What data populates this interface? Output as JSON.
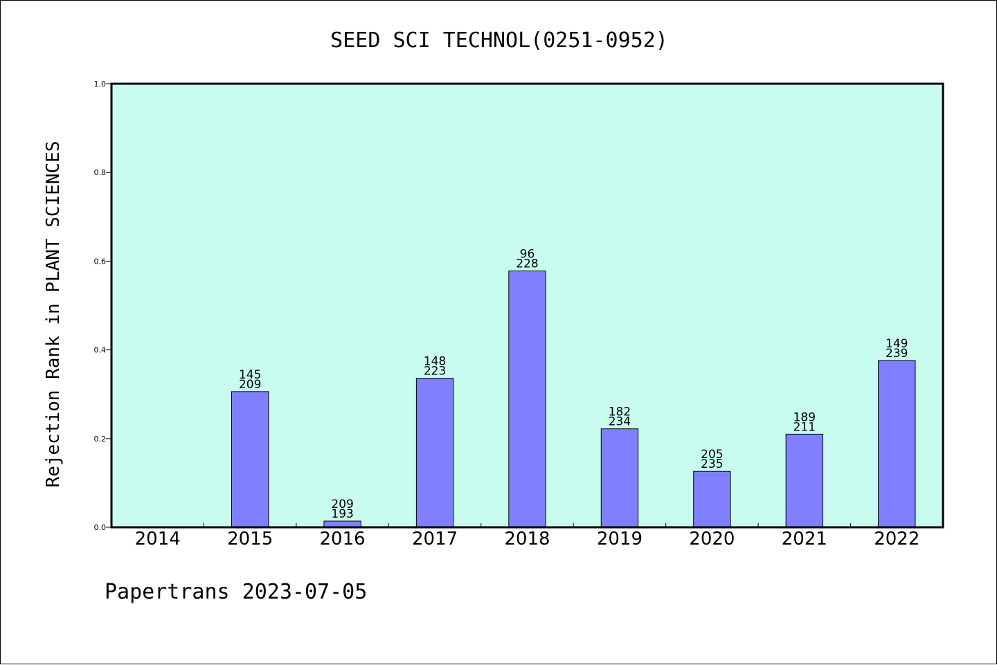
{
  "chart_data": {
    "type": "bar",
    "title": "SEED SCI TECHNOL(0251-0952)",
    "ylabel": "Rejection Rank in PLANT SCIENCES",
    "xlabel": "",
    "ylim": [
      0,
      1.0
    ],
    "yticks": [
      "0.0",
      "0.2",
      "0.4",
      "0.6",
      "0.8",
      "1.0"
    ],
    "ytick_values": [
      0.0,
      0.2,
      0.4,
      0.6,
      0.8,
      1.0
    ],
    "categories": [
      "2014",
      "2015",
      "2016",
      "2017",
      "2018",
      "2019",
      "2020",
      "2021",
      "2022"
    ],
    "values": [
      null,
      0.306,
      0.014,
      0.336,
      0.578,
      0.222,
      0.126,
      0.21,
      0.376
    ],
    "labels_top": [
      null,
      "145",
      "209",
      "148",
      "96",
      "182",
      "205",
      "189",
      "149"
    ],
    "labels_bottom": [
      null,
      "209",
      "193",
      "223",
      "228",
      "234",
      "235",
      "211",
      "239"
    ],
    "grid": false,
    "legend": "none",
    "colors": {
      "plot_background": "#c8fcee",
      "bar_fill": "#8080ff",
      "bar_stroke": "#000000"
    }
  },
  "footer": "Papertrans 2023-07-05"
}
